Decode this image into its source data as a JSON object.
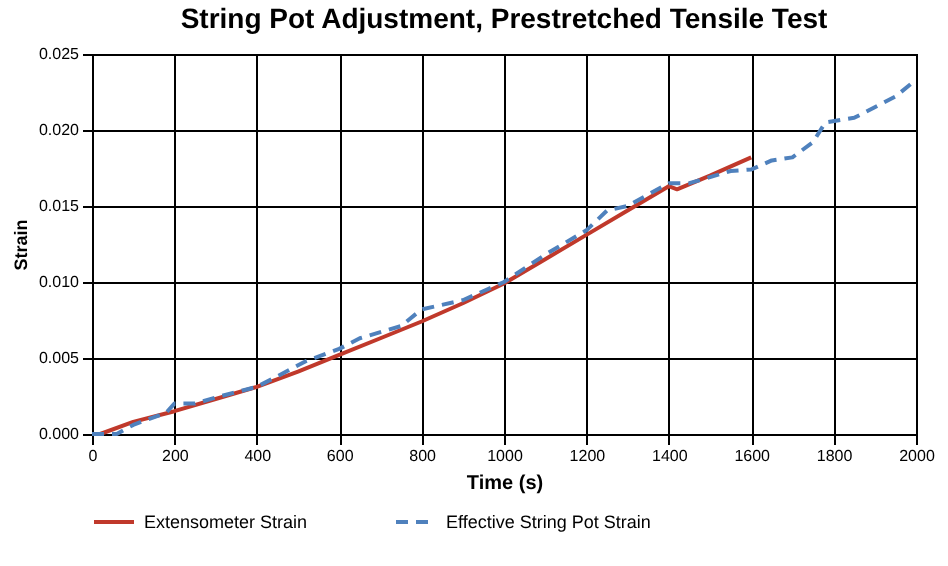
{
  "chart_data": {
    "type": "line",
    "title": "String Pot Adjustment, Prestretched Tensile Test",
    "xlabel": "Time (s)",
    "ylabel": "Strain",
    "xlim": [
      0,
      2000
    ],
    "xticks": [
      0,
      200,
      400,
      600,
      800,
      1000,
      1200,
      1400,
      1600,
      1800,
      2000
    ],
    "ylim": [
      0,
      0.025
    ],
    "yticks": [
      {
        "value": 0,
        "label": "0.000"
      },
      {
        "value": 0.005,
        "label": "0.005"
      },
      {
        "value": 0.01,
        "label": "0.010"
      },
      {
        "value": 0.015,
        "label": "0.015"
      },
      {
        "value": 0.02,
        "label": "0.020"
      },
      {
        "value": 0.025,
        "label": "0.025"
      }
    ],
    "grid": true,
    "legend": "bottom",
    "marker": "none",
    "series": [
      {
        "name": "Extensometer Strain",
        "color": "#c0392b",
        "line_style": "solid",
        "x": [
          0,
          20,
          100,
          200,
          300,
          400,
          500,
          600,
          700,
          800,
          900,
          1000,
          1100,
          1200,
          1300,
          1400,
          1420,
          1500,
          1600
        ],
        "values": [
          0,
          0,
          0.0008,
          0.0015,
          0.0023,
          0.0031,
          0.0041,
          0.0052,
          0.0063,
          0.0074,
          0.0086,
          0.0099,
          0.0115,
          0.0131,
          0.0147,
          0.0163,
          0.0161,
          0.017,
          0.0182
        ]
      },
      {
        "name": "Effective String Pot Strain",
        "color": "#4f81bd",
        "line_style": "dashed",
        "x": [
          0,
          60,
          100,
          180,
          200,
          250,
          300,
          400,
          450,
          520,
          600,
          650,
          750,
          800,
          900,
          1000,
          1100,
          1200,
          1250,
          1300,
          1400,
          1450,
          1550,
          1600,
          1650,
          1700,
          1750,
          1780,
          1850,
          1950,
          2000
        ],
        "values": [
          0,
          0,
          0.0006,
          0.0014,
          0.002,
          0.002,
          0.0024,
          0.0031,
          0.0038,
          0.0048,
          0.0056,
          0.0063,
          0.0071,
          0.0082,
          0.0088,
          0.01,
          0.0118,
          0.0134,
          0.0147,
          0.015,
          0.0165,
          0.0165,
          0.0173,
          0.0174,
          0.018,
          0.0182,
          0.0192,
          0.0205,
          0.0208,
          0.0222,
          0.0233
        ]
      }
    ]
  }
}
